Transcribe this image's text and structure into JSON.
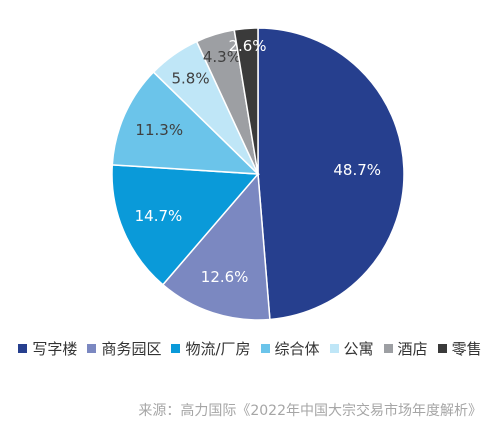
{
  "chart_data": {
    "type": "pie",
    "slices": [
      {
        "label": "写字楼",
        "value": 48.7,
        "display": "48.7%",
        "color": "#263f8e"
      },
      {
        "label": "商务园区",
        "value": 12.6,
        "display": "12.6%",
        "color": "#7b88c1"
      },
      {
        "label": "物流/厂房",
        "value": 14.7,
        "display": "14.7%",
        "color": "#0a9ad9"
      },
      {
        "label": "综合体",
        "value": 11.3,
        "display": "11.3%",
        "color": "#6bc4ea"
      },
      {
        "label": "公寓",
        "value": 5.8,
        "display": "5.8%",
        "color": "#bfe6f7"
      },
      {
        "label": "酒店",
        "value": 4.3,
        "display": "4.3%",
        "color": "#9d9fa3"
      },
      {
        "label": "零售",
        "value": 2.6,
        "display": "2.6%",
        "color": "#3a3a3a"
      }
    ],
    "legend_position": "bottom"
  },
  "source": "来源：高力国际《2022年中国大宗交易市场年度解析》"
}
